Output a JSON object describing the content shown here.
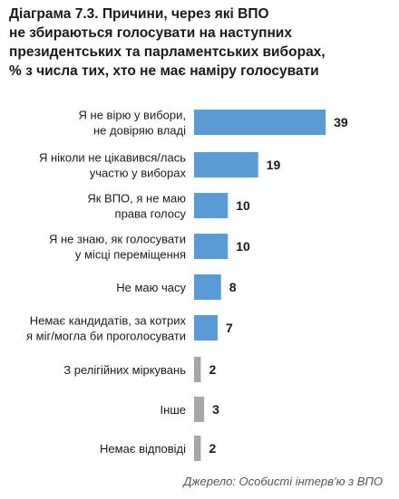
{
  "title_lines": [
    "Діаграма 7.3. Причини, через які ВПО",
    "не збираються голосувати на наступних",
    "президентських та парламентських виборах,",
    "% з числа тих, хто не має наміру голосувати"
  ],
  "source": "Джерело: Особисті інтерв’ю з ВПО",
  "colors": {
    "bar_main": "#5b9bd5",
    "bar_minor": "#a6a6a6",
    "text": "#1a1a1a"
  },
  "chart_data": {
    "type": "bar",
    "orientation": "horizontal",
    "categories": [
      [
        "Я не вірю у вибори,",
        "не довіряю владі"
      ],
      [
        "Я ніколи не цікавився/лась",
        "участю у виборах"
      ],
      [
        "Як ВПО, я не маю",
        "права голосу"
      ],
      [
        "Я не знаю, як голосувати",
        "у місці переміщення"
      ],
      [
        "Не маю часу"
      ],
      [
        "Немає кандидатів, за котрих",
        "я міг/могла би проголосувати"
      ],
      [
        "З релігійних міркувань"
      ],
      [
        "Інше"
      ],
      [
        "Немає відповіді"
      ]
    ],
    "values": [
      39,
      19,
      10,
      10,
      8,
      7,
      2,
      3,
      2
    ],
    "value_labels": [
      "39",
      "19",
      "10",
      "10",
      "8",
      "7",
      "2",
      "3",
      "2"
    ],
    "bar_colors": [
      "#5b9bd5",
      "#5b9bd5",
      "#5b9bd5",
      "#5b9bd5",
      "#5b9bd5",
      "#5b9bd5",
      "#a6a6a6",
      "#a6a6a6",
      "#a6a6a6"
    ]
  }
}
